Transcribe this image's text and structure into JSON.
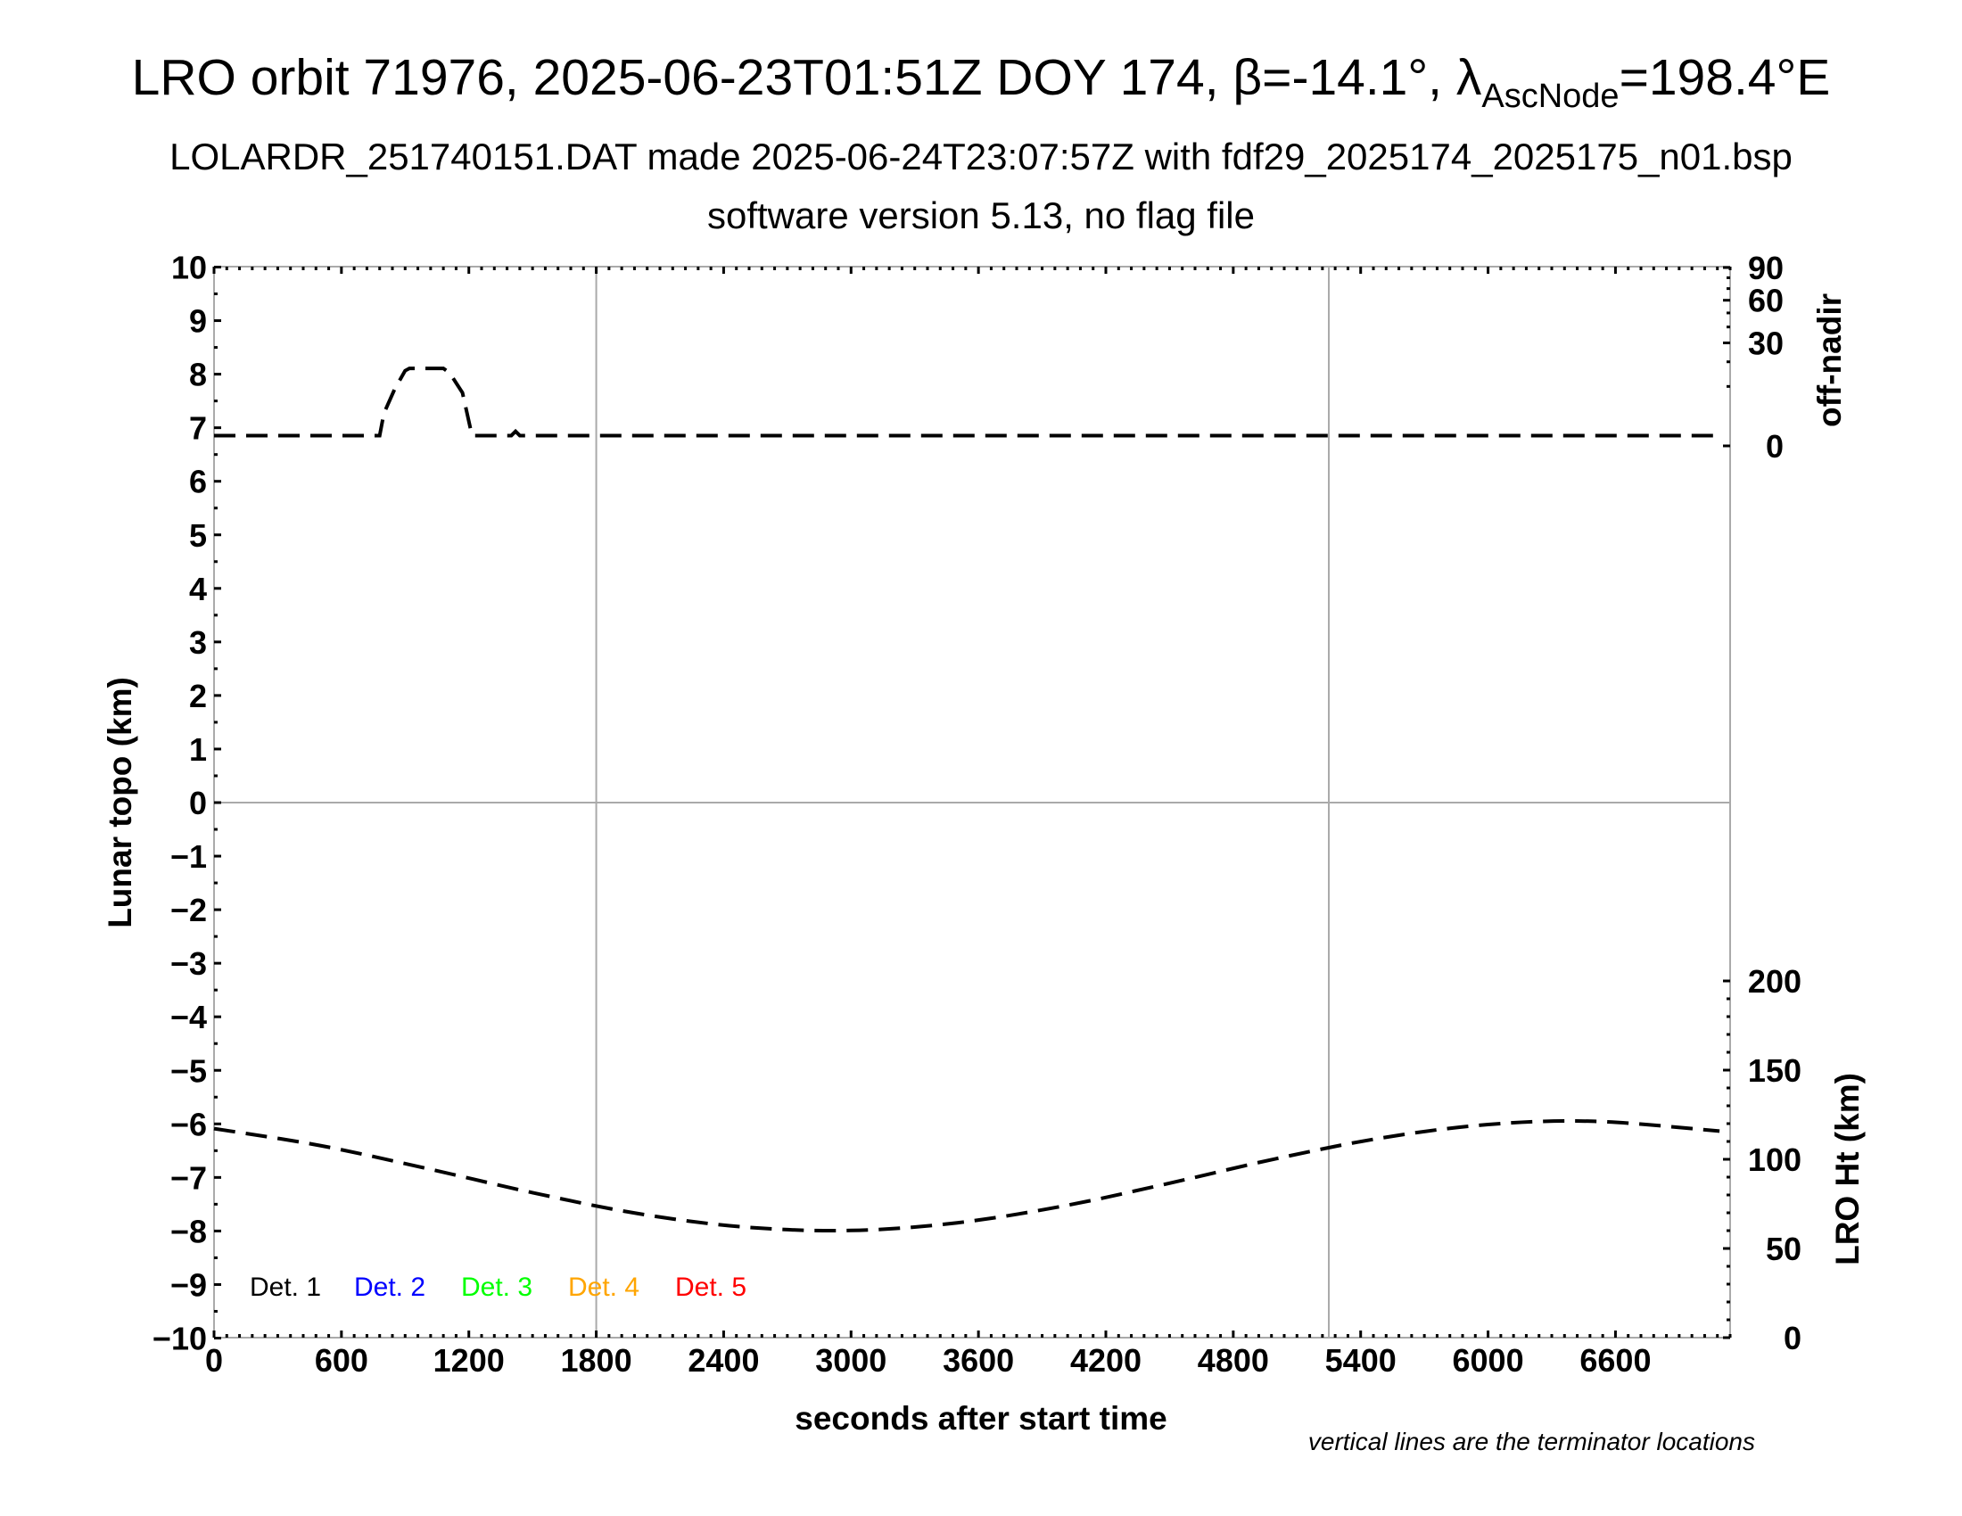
{
  "header": {
    "title_main": "LRO orbit 71976, 2025-06-23T01:51Z DOY 174, β=-14.1°, λ",
    "title_sub": "AscNode",
    "title_end": "=198.4°E",
    "subtitle1": "LOLARDR_251740151.DAT made 2025-06-24T23:07:57Z with fdf29_2025174_2025175_n01.bsp",
    "subtitle2": "software version 5.13, no flag file"
  },
  "chart_data": {
    "type": "line",
    "xlabel": "seconds after start time",
    "ylabel": "Lunar topo (km)",
    "ylabel_right_top": "off-nadir",
    "ylabel_right_bottom": "LRO Ht (km)",
    "note": "vertical lines are the terminator locations",
    "xlim": [
      0,
      7140
    ],
    "ylim": [
      -10,
      10
    ],
    "x_ticks": [
      "0",
      "600",
      "1200",
      "1800",
      "2400",
      "3000",
      "3600",
      "4200",
      "4800",
      "5400",
      "6000",
      "6600"
    ],
    "y_ticks": [
      "10",
      "9",
      "8",
      "7",
      "6",
      "5",
      "4",
      "3",
      "2",
      "1",
      "0",
      "−1",
      "−2",
      "−3",
      "−4",
      "−5",
      "−6",
      "−7",
      "−8",
      "−9",
      "−10"
    ],
    "off_nadir_ticks": [
      "90",
      "60",
      "30",
      "0"
    ],
    "off_nadir_scale": "sqrt",
    "lro_ht_ticks": [
      "200",
      "150",
      "100",
      "50",
      "0"
    ],
    "terminators": [
      1800,
      5250
    ],
    "legend": [
      {
        "label": "Det. 1",
        "color": "#000000"
      },
      {
        "label": "Det. 2",
        "color": "#0000ff"
      },
      {
        "label": "Det. 3",
        "color": "#00ff00"
      },
      {
        "label": "Det. 4",
        "color": "#ffa500"
      },
      {
        "label": "Det. 5",
        "color": "#ff0000"
      }
    ],
    "series": [
      {
        "axis": "off-nadir (deg)",
        "style": "dashed",
        "x": [
          0,
          780,
          800,
          850,
          900,
          920,
          1080,
          1110,
          1170,
          1215,
          1400,
          1420,
          1440,
          7090
        ],
        "y": [
          0.3,
          0.3,
          3,
          9,
          16,
          17,
          17,
          15,
          8,
          0.3,
          0.3,
          0.6,
          0.3,
          0.3
        ]
      },
      {
        "axis": "LRO Ht (km)",
        "style": "dashed",
        "x": [
          0,
          500,
          1000,
          1500,
          2000,
          2500,
          3000,
          3500,
          4000,
          4500,
          5000,
          5500,
          6000,
          6500,
          7090
        ],
        "y": [
          117.2,
          107.7,
          94.9,
          81.3,
          69.5,
          62.0,
          60.1,
          64.4,
          73.8,
          86.6,
          100.3,
          112.0,
          119.5,
          121.3,
          115.8
        ]
      }
    ]
  }
}
